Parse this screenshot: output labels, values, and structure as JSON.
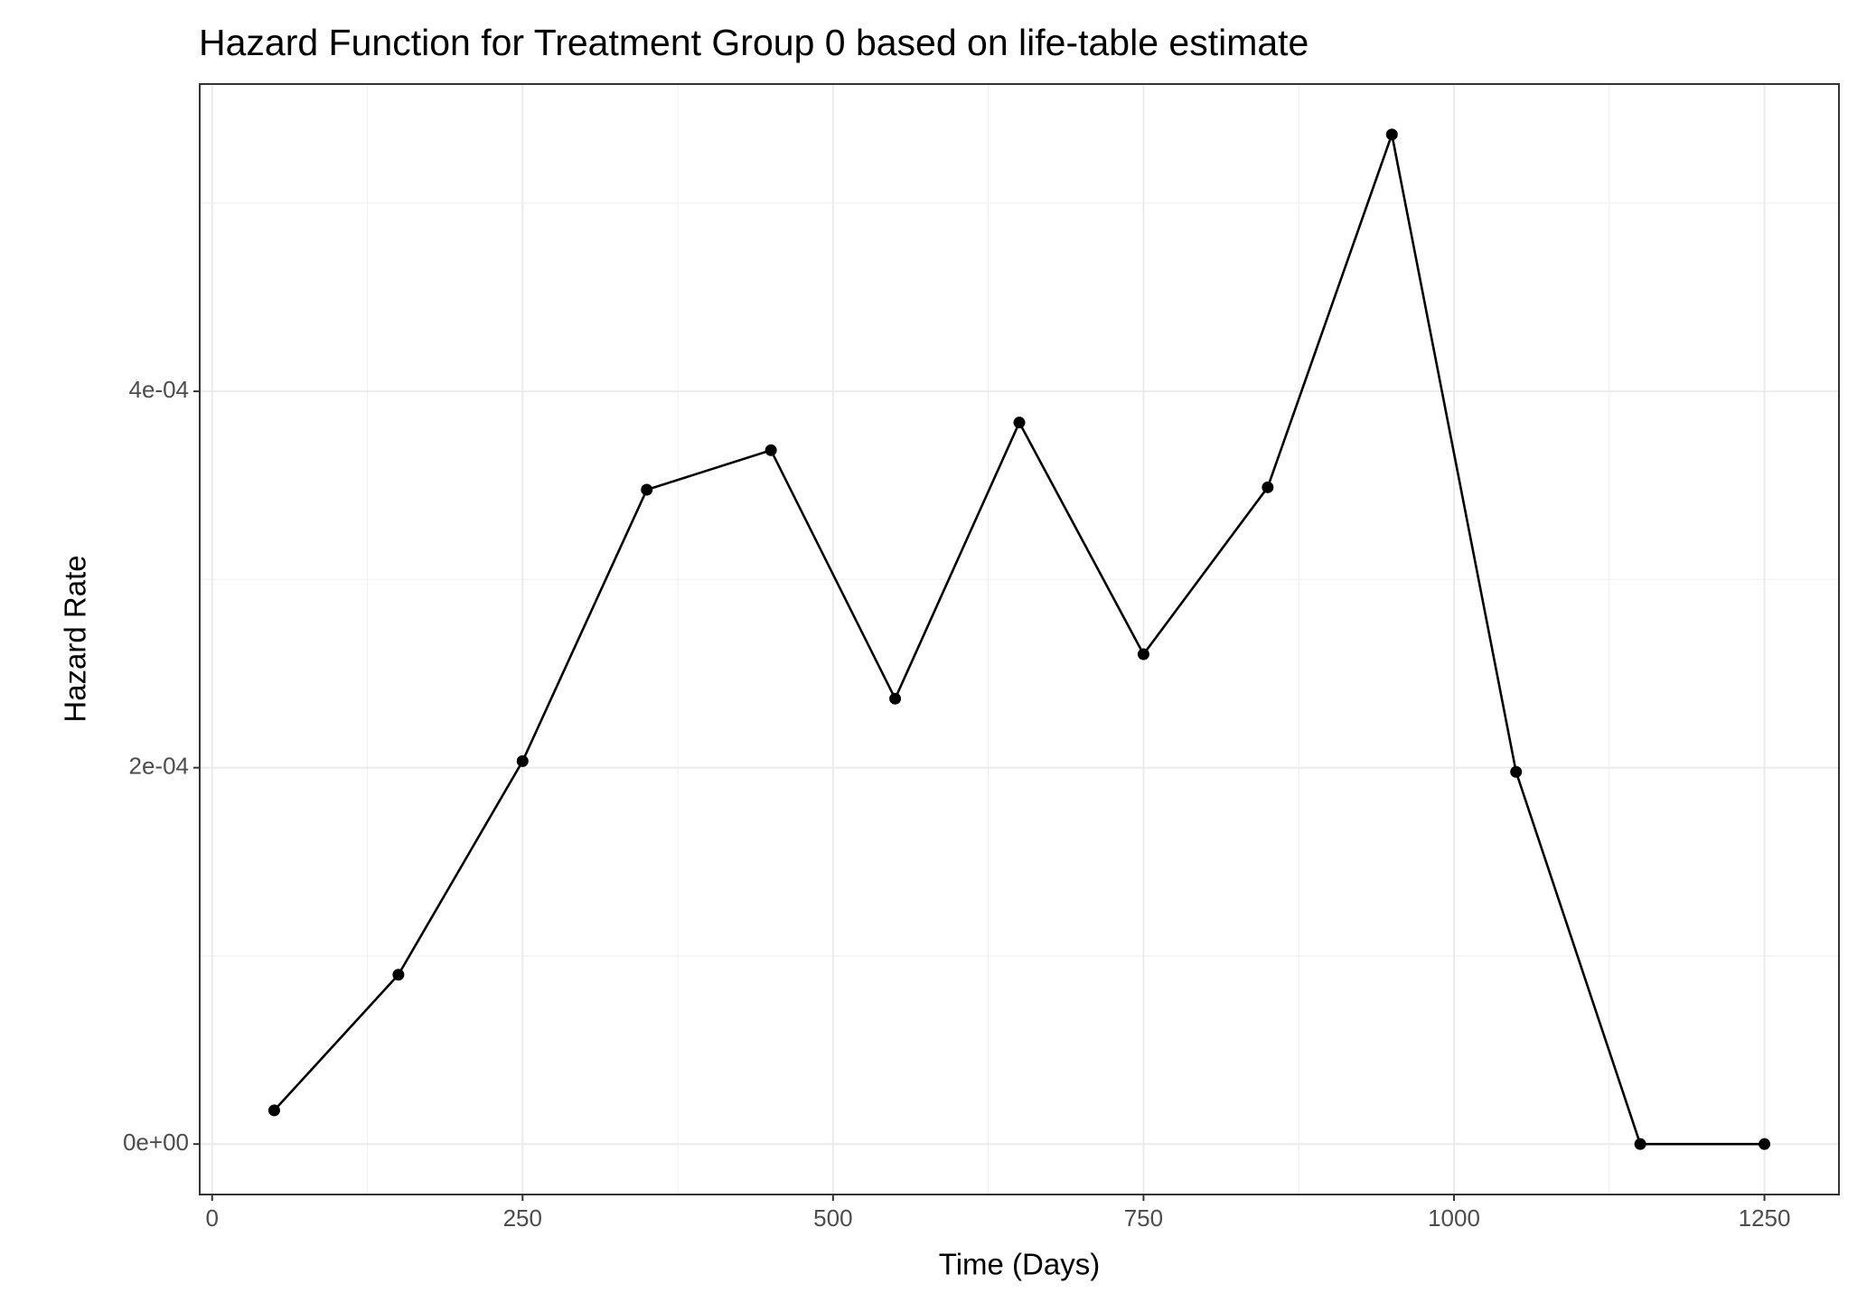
{
  "chart_data": {
    "type": "line",
    "title": "Hazard Function for Treatment Group 0 based on life-table estimate",
    "x_label": "Time (Days)",
    "y_label": "Hazard Rate",
    "x": [
      50,
      150,
      250,
      350,
      450,
      550,
      650,
      750,
      850,
      950,
      1050,
      1150,
      1250
    ],
    "series": [
      {
        "color": "#000000",
        "values": [
          1.79e-05,
          9e-05,
          0.0002035,
          0.0003477,
          0.0003687,
          0.0002367,
          0.0003834,
          0.0002603,
          0.000349,
          0.0005365,
          0.0001978,
          0,
          0
        ]
      }
    ],
    "xlim": [
      -10,
      1310
    ],
    "xticks": [
      0,
      250,
      500,
      750,
      1000,
      1250
    ],
    "ylim": [
      -2.68e-05,
      0.0005633
    ],
    "yticks": [
      {
        "value": 0,
        "label": "0e+00"
      },
      {
        "value": 0.0002,
        "label": "2e-04"
      },
      {
        "value": 0.0004,
        "label": "4e-04"
      }
    ],
    "grid": true
  }
}
